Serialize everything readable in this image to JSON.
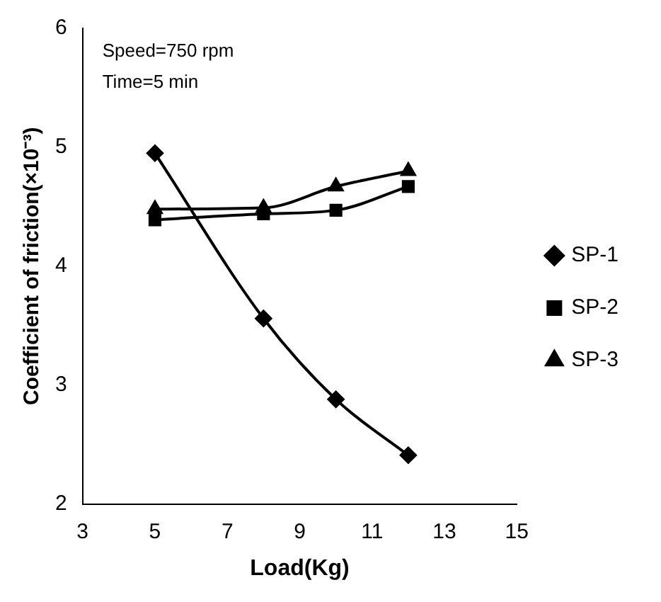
{
  "chart_data": {
    "type": "line",
    "xlabel": "Load(Kg)",
    "ylabel": "Coefficient of friction(×10⁻³)",
    "annotations": [
      "Speed=750 rpm",
      "Time=5 min"
    ],
    "xlim": [
      3,
      15
    ],
    "xticks": [
      3,
      5,
      7,
      9,
      11,
      13,
      15
    ],
    "ylim": [
      2,
      6
    ],
    "yticks": [
      2,
      3,
      4,
      5,
      6
    ],
    "grid": false,
    "legend": "right",
    "series": [
      {
        "name": "SP-1",
        "color": "#000000",
        "marker": "diamond",
        "x": [
          5,
          8,
          10,
          12
        ],
        "values": [
          4.95,
          3.56,
          2.88,
          2.41
        ]
      },
      {
        "name": "SP-2",
        "color": "#000000",
        "marker": "square",
        "x": [
          5,
          8,
          10,
          12
        ],
        "values": [
          4.39,
          4.44,
          4.47,
          4.67
        ]
      },
      {
        "name": "SP-3",
        "color": "#000000",
        "marker": "triangle",
        "x": [
          5,
          8,
          10,
          12
        ],
        "values": [
          4.48,
          4.49,
          4.67,
          4.8
        ]
      }
    ]
  }
}
